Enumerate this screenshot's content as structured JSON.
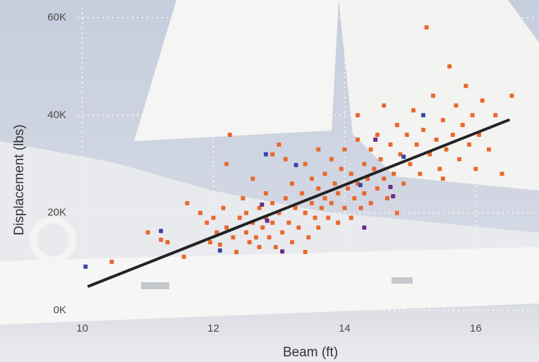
{
  "chart_data": {
    "type": "scatter",
    "x_label": "Beam (ft)",
    "y_label": "Displacement (lbs)",
    "xlim": [
      9.8,
      16.9
    ],
    "ylim": [
      -2000,
      62000
    ],
    "xticks": [
      10,
      12,
      14,
      16
    ],
    "yticks": [
      {
        "value": 0,
        "label": "0K"
      },
      {
        "value": 20000,
        "label": "20K"
      },
      {
        "value": 40000,
        "label": "40K"
      },
      {
        "value": 60000,
        "label": "60K"
      }
    ],
    "grid": true,
    "series": [
      {
        "type": "scatter",
        "color": "#e8692e",
        "x": [
          10.45,
          11.2,
          11.3,
          11.55,
          11.6,
          11.8,
          11.9,
          11.95,
          12.0,
          12.05,
          12.1,
          12.15,
          12.2,
          12.25,
          12.3,
          12.35,
          12.4,
          12.45,
          12.5,
          12.5,
          12.55,
          12.6,
          12.6,
          12.65,
          12.7,
          12.7,
          12.75,
          12.8,
          12.8,
          12.85,
          12.9,
          12.9,
          12.95,
          13.0,
          13.0,
          13.05,
          13.1,
          13.1,
          13.15,
          13.2,
          13.2,
          13.25,
          13.3,
          13.35,
          13.4,
          13.4,
          13.45,
          13.5,
          13.5,
          13.55,
          13.6,
          13.6,
          13.65,
          13.7,
          13.7,
          13.75,
          13.8,
          13.8,
          13.85,
          13.9,
          13.9,
          13.95,
          14.0,
          14.0,
          14.05,
          14.1,
          14.1,
          14.15,
          14.2,
          14.2,
          14.25,
          14.3,
          14.3,
          14.35,
          14.4,
          14.4,
          14.45,
          14.5,
          14.5,
          14.55,
          14.6,
          14.6,
          14.65,
          14.7,
          14.75,
          14.8,
          14.85,
          14.9,
          14.95,
          15.0,
          15.05,
          15.1,
          15.15,
          15.2,
          15.25,
          15.3,
          15.35,
          15.4,
          15.45,
          15.5,
          15.55,
          15.6,
          15.65,
          15.7,
          15.75,
          15.8,
          15.85,
          15.9,
          15.95,
          16.0,
          16.05,
          16.1,
          16.2,
          16.3,
          16.4,
          16.55,
          13.6,
          14.8,
          15.5,
          12.2,
          13.4,
          11.0,
          12.9,
          14.2
        ],
        "values": [
          10000,
          14500,
          14000,
          11000,
          22000,
          20000,
          18000,
          14000,
          19000,
          16000,
          13500,
          21000,
          17000,
          36000,
          15000,
          12000,
          19000,
          23000,
          20000,
          16000,
          14000,
          27000,
          18000,
          15000,
          21000,
          13000,
          17000,
          24000,
          19000,
          15000,
          22000,
          18000,
          13000,
          34000,
          20000,
          16000,
          31000,
          23000,
          18000,
          26000,
          14000,
          21000,
          17000,
          24000,
          20000,
          30000,
          15000,
          22000,
          27000,
          19000,
          25000,
          17000,
          21000,
          28000,
          23000,
          19000,
          31000,
          22000,
          26000,
          18000,
          24000,
          29000,
          21000,
          33000,
          25000,
          19000,
          28000,
          23000,
          35000,
          26000,
          21000,
          30000,
          24000,
          27000,
          33000,
          22000,
          29000,
          25000,
          36000,
          31000,
          27000,
          42000,
          23000,
          34000,
          28000,
          38000,
          32000,
          26000,
          36000,
          30000,
          41000,
          34000,
          28000,
          37000,
          58000,
          32000,
          44000,
          35000,
          29000,
          39000,
          33000,
          50000,
          36000,
          42000,
          31000,
          38000,
          46000,
          34000,
          40000,
          29000,
          36000,
          43000,
          33000,
          40000,
          28000,
          44000,
          33000,
          20000,
          27000,
          30000,
          12000,
          16000,
          32000,
          40000
        ]
      },
      {
        "type": "scatter",
        "color": "#3b47a6",
        "x": [
          10.05,
          11.2,
          12.1,
          12.8,
          13.26,
          14.9,
          15.2,
          14.24
        ],
        "values": [
          9000,
          16300,
          12300,
          32000,
          29800,
          31500,
          40000,
          25700
        ]
      },
      {
        "type": "scatter",
        "color": "#6a2c8a",
        "x": [
          13.05,
          12.74,
          12.82,
          14.47,
          14.7,
          14.74,
          14.3
        ],
        "values": [
          12100,
          21700,
          18400,
          35000,
          25300,
          23400,
          17000
        ]
      },
      {
        "type": "line",
        "color": "#222222",
        "x": [
          10.1,
          16.5
        ],
        "values": [
          5000,
          39000
        ]
      }
    ]
  }
}
